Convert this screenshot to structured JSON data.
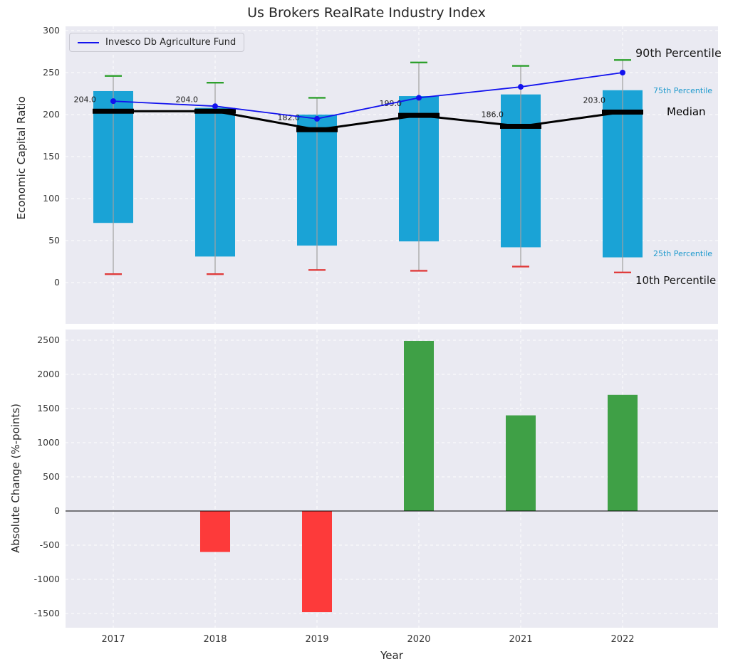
{
  "title": "Us Brokers RealRate Industry Index",
  "legend": {
    "label": "Invesco Db Agriculture Fund"
  },
  "annotations": {
    "p90": "90th Percentile",
    "p75": "75th Percentile",
    "median": "Median",
    "p25": "25th Percentile",
    "p10": "10th Percentile"
  },
  "colors": {
    "panel_bg": "#eaeaf2",
    "grid": "#ffffff",
    "box": "#1aa3d6",
    "whisker": "#a0a0a0",
    "cap_top": "#2da02c",
    "cap_bottom": "#e03c3c",
    "median": "#000000",
    "invesco": "#1212ee",
    "percentile_label_blue": "#1f9acd",
    "tick_text": "#3a3a3a"
  },
  "chart_data": [
    {
      "type": "box-line",
      "title": "Us Brokers RealRate Industry Index",
      "ylabel": "Economic Capital Ratio",
      "categories": [
        "2017",
        "2018",
        "2019",
        "2020",
        "2021",
        "2022"
      ],
      "ylim": [
        -49,
        305
      ],
      "yticks": [
        0,
        50,
        100,
        150,
        200,
        250,
        300
      ],
      "grid": true,
      "legend_position": "upper left",
      "percentiles": {
        "p10": [
          10,
          10,
          15,
          14,
          19,
          12
        ],
        "p25": [
          71,
          31,
          44,
          49,
          42,
          30
        ],
        "median": [
          204,
          204,
          182,
          199,
          186,
          203
        ],
        "p75": [
          228,
          208,
          200,
          222,
          224,
          229
        ],
        "p90": [
          246,
          238,
          220,
          262,
          258,
          265
        ]
      },
      "line_series": {
        "name": "Invesco Db Agriculture Fund",
        "values": [
          216,
          210,
          195,
          220,
          233,
          250
        ]
      },
      "median_labels": [
        "204.0",
        "204.0",
        "182.0",
        "199.0",
        "186.0",
        "203.0"
      ]
    },
    {
      "type": "bar",
      "ylabel": "Absolute Change (%-points)",
      "xlabel": "Year",
      "categories": [
        "2017",
        "2018",
        "2019",
        "2020",
        "2021",
        "2022"
      ],
      "values": [
        0,
        -600,
        -1480,
        2490,
        1400,
        1700
      ],
      "ylim": [
        -1700,
        2650
      ],
      "yticks": [
        -1500,
        -1000,
        -500,
        0,
        500,
        1000,
        1500,
        2000,
        2500
      ],
      "grid": true,
      "bar_colors": {
        "positive": "#3fa046",
        "negative": "#fd3a3a"
      }
    }
  ]
}
